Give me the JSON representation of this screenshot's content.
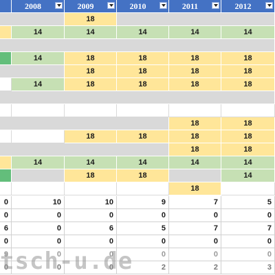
{
  "header": {
    "years": [
      "2008",
      "2009",
      "2010",
      "2011",
      "2012"
    ]
  },
  "row_values": {
    "r1": [
      "18"
    ],
    "r2": [
      "14",
      "14",
      "14",
      "14",
      "14"
    ],
    "r4": [
      "14",
      "18",
      "18",
      "18",
      "18"
    ],
    "r5": [
      "18",
      "18",
      "18",
      "18"
    ],
    "r6": [
      "14",
      "18",
      "18",
      "18",
      "18"
    ],
    "r9": [
      "18",
      "18"
    ],
    "r10": [
      "18",
      "18",
      "18",
      "18"
    ],
    "r11": [
      "18",
      "18"
    ],
    "r12": [
      "14",
      "14",
      "14",
      "14",
      "14"
    ],
    "r13": [
      "18",
      "18",
      "14"
    ],
    "r14": [
      "18"
    ]
  },
  "summary_rows": [
    [
      "0",
      "10",
      "10",
      "9",
      "7",
      "5"
    ],
    [
      "0",
      "0",
      "0",
      "0",
      "0",
      "0"
    ],
    [
      "6",
      "0",
      "6",
      "5",
      "7",
      "7"
    ],
    [
      "0",
      "0",
      "0",
      "0",
      "0",
      "0"
    ],
    [
      "9",
      "0",
      "0",
      "0",
      "0",
      "0"
    ],
    [
      "0",
      "0",
      "0",
      "2",
      "2",
      "3"
    ]
  ],
  "watermark": "tsch-u.de"
}
